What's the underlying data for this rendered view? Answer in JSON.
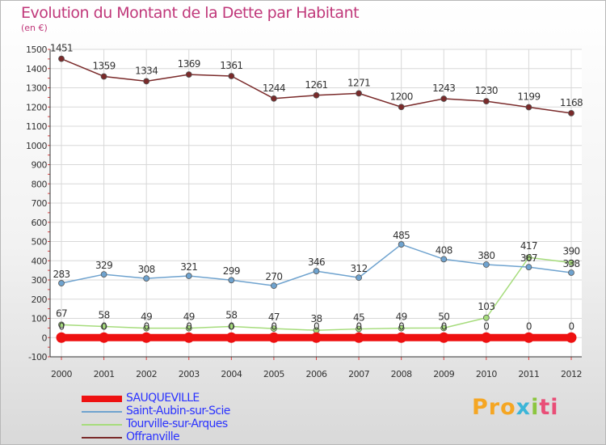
{
  "title": "Evolution du Montant de la Dette par Habitant",
  "subtitle": "(en €)",
  "brand": "Proxiti",
  "chart_data": {
    "type": "line",
    "x": [
      "2000",
      "2001",
      "2002",
      "2003",
      "2004",
      "2005",
      "2006",
      "2007",
      "2008",
      "2009",
      "2010",
      "2011",
      "2012"
    ],
    "ylim": [
      -100,
      1500
    ],
    "yticks": [
      -100,
      0,
      100,
      200,
      300,
      400,
      500,
      600,
      700,
      800,
      900,
      1000,
      1100,
      1200,
      1300,
      1400,
      1500
    ],
    "grid": true,
    "legend_position": "bottom-left",
    "series": [
      {
        "name": "SAUQUEVILLE",
        "color": "#ee1111",
        "values": [
          0,
          0,
          0,
          0,
          0,
          0,
          0,
          0,
          0,
          0,
          0,
          0,
          0
        ],
        "labels": [
          "0",
          "0",
          "0",
          "0",
          "0",
          "0",
          "0",
          "0",
          "0",
          "0",
          "0",
          "0",
          "0"
        ]
      },
      {
        "name": "Saint-Aubin-sur-Scie",
        "color": "#6fa3cf",
        "values": [
          283,
          329,
          308,
          321,
          299,
          270,
          346,
          312,
          485,
          408,
          380,
          367,
          338
        ],
        "labels": [
          "283",
          "329",
          "308",
          "321",
          "299",
          "270",
          "346",
          "312",
          "485",
          "408",
          "380",
          "367",
          "338"
        ]
      },
      {
        "name": "Tourville-sur-Arques",
        "color": "#a6dc7c",
        "values": [
          67,
          58,
          49,
          49,
          58,
          47,
          38,
          45,
          49,
          50,
          103,
          417,
          390
        ],
        "labels": [
          "67",
          "58",
          "49",
          "49",
          "58",
          "47",
          "38",
          "45",
          "49",
          "50",
          "103",
          "417",
          "390"
        ]
      },
      {
        "name": "Offranville",
        "color": "#7a2a2a",
        "values": [
          1451,
          1359,
          1334,
          1369,
          1361,
          1244,
          1261,
          1271,
          1200,
          1243,
          1230,
          1199,
          1168
        ],
        "labels": [
          "1451",
          "1359",
          "1334",
          "1369",
          "1361",
          "1244",
          "1261",
          "1271",
          "1200",
          "1243",
          "1230",
          "1199",
          "1168"
        ]
      }
    ]
  }
}
